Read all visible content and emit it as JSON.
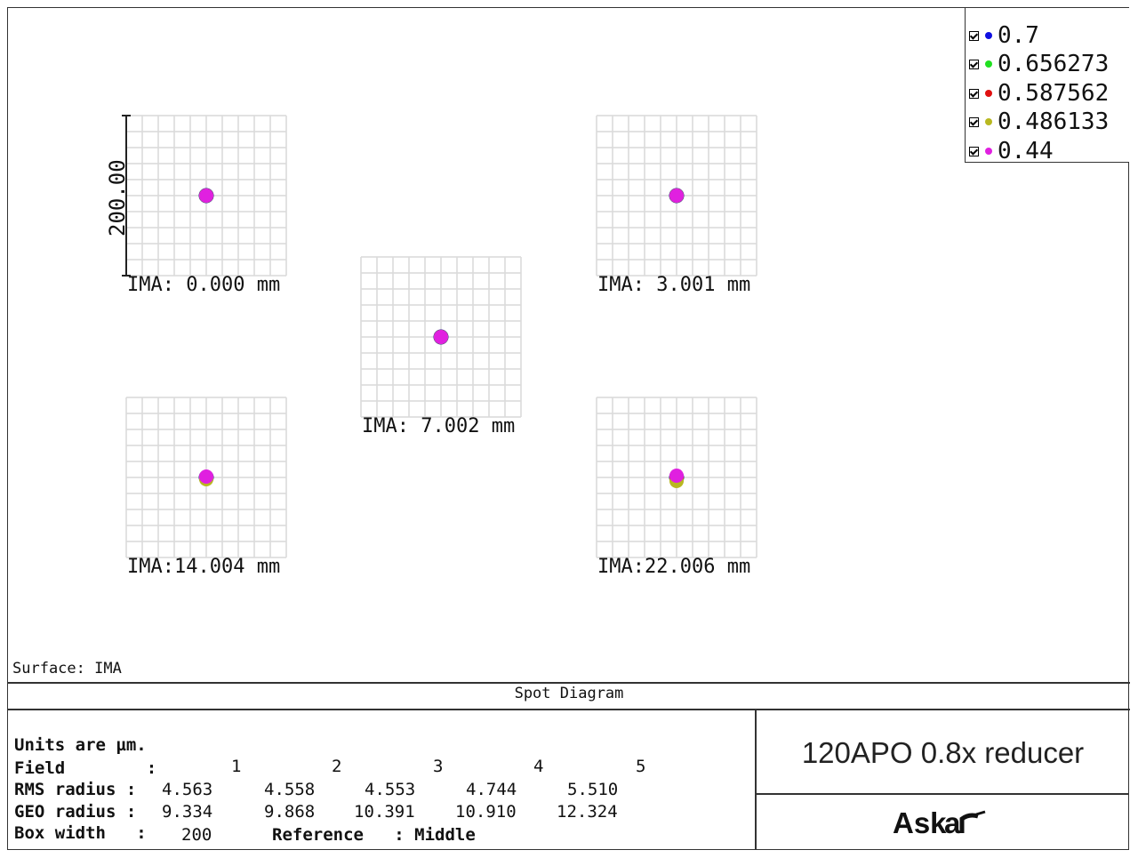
{
  "legend": {
    "items": [
      {
        "label": "0.7",
        "color": "#1010e0"
      },
      {
        "label": "0.656273",
        "color": "#20e020"
      },
      {
        "label": "0.587562",
        "color": "#e01010"
      },
      {
        "label": "0.486133",
        "color": "#b8b820"
      },
      {
        "label": "0.44",
        "color": "#e020e0"
      }
    ]
  },
  "axis": {
    "scale_label": "200.00"
  },
  "fields": [
    {
      "label": "IMA: 0.000 mm"
    },
    {
      "label": "IMA: 3.001 mm"
    },
    {
      "label": "IMA: 7.002 mm"
    },
    {
      "label": "IMA:14.004 mm"
    },
    {
      "label": "IMA:22.006 mm"
    }
  ],
  "surface_label": "Surface: IMA",
  "diagram_title": "Spot Diagram",
  "stats": {
    "units_line": "Units are µm.",
    "field_header": "Field        :",
    "field_numbers": [
      "1",
      "2",
      "3",
      "4",
      "5"
    ],
    "rms_label": "RMS radius :",
    "rms_values": [
      "4.563",
      "4.558",
      "4.553",
      "4.744",
      "5.510"
    ],
    "geo_label": "GEO radius :",
    "geo_values": [
      "9.334",
      "9.868",
      "10.391",
      "10.910",
      "12.324"
    ],
    "box_label": "Box width   :",
    "box_value": "200",
    "reference_label": "Reference   : Middle"
  },
  "system_title": "120APO 0.8x reducer",
  "logo_text": "Askar"
}
